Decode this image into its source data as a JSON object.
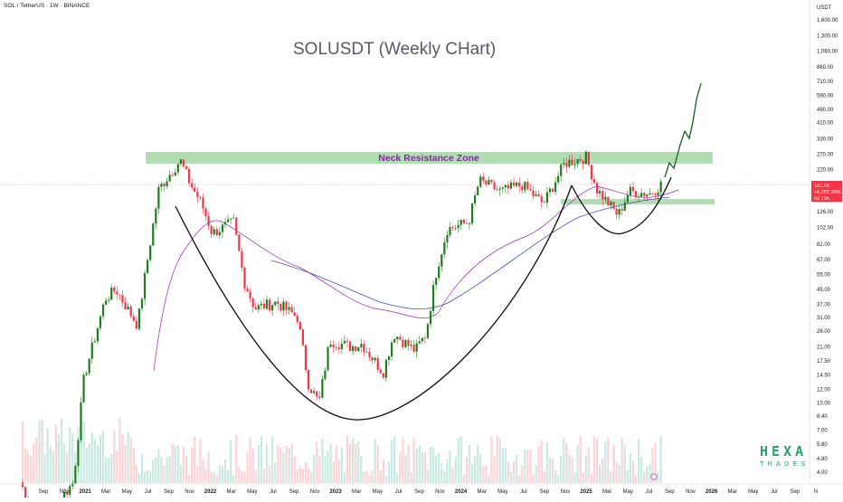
{
  "header": {
    "symbol_line": "SOL / TetherUS · 1W · BINANCE"
  },
  "title": "SOLUSDT (Weekly CHart)",
  "zone_label": "Neck Resistance Zone",
  "axis": {
    "currency": "USDT",
    "y_ticks": [
      "4.00",
      "4.80",
      "5.80",
      "7.00",
      "8.40",
      "10.00",
      "12.00",
      "14.50",
      "17.50",
      "21.00",
      "26.00",
      "31.00",
      "37.00",
      "45.00",
      "55.00",
      "67.00",
      "82.00",
      "102.00",
      "126.00",
      "160.00",
      "220.00",
      "270.00",
      "330.00",
      "410.00",
      "490.00",
      "590.00",
      "710.00",
      "860.00",
      "1,060.00",
      "1,300.00",
      "1,600.00"
    ],
    "x_ticks": [
      {
        "label": "Sep",
        "year": false
      },
      {
        "label": "Nov",
        "year": false
      },
      {
        "label": "2021",
        "year": true
      },
      {
        "label": "Mar",
        "year": false
      },
      {
        "label": "May",
        "year": false
      },
      {
        "label": "Jul",
        "year": false
      },
      {
        "label": "Sep",
        "year": false
      },
      {
        "label": "Nov",
        "year": false
      },
      {
        "label": "2022",
        "year": true
      },
      {
        "label": "Mar",
        "year": false
      },
      {
        "label": "May",
        "year": false
      },
      {
        "label": "Jul",
        "year": false
      },
      {
        "label": "Sep",
        "year": false
      },
      {
        "label": "Nov",
        "year": false
      },
      {
        "label": "2023",
        "year": true
      },
      {
        "label": "Mar",
        "year": false
      },
      {
        "label": "May",
        "year": false
      },
      {
        "label": "Jul",
        "year": false
      },
      {
        "label": "Sep",
        "year": false
      },
      {
        "label": "Nov",
        "year": false
      },
      {
        "label": "2024",
        "year": true
      },
      {
        "label": "Mar",
        "year": false
      },
      {
        "label": "May",
        "year": false
      },
      {
        "label": "Jul",
        "year": false
      },
      {
        "label": "Sep",
        "year": false
      },
      {
        "label": "Nov",
        "year": false
      },
      {
        "label": "2025",
        "year": true
      },
      {
        "label": "Mar",
        "year": false
      },
      {
        "label": "May",
        "year": false
      },
      {
        "label": "Jul",
        "year": false
      },
      {
        "label": "Sep",
        "year": false
      },
      {
        "label": "Nov",
        "year": false
      },
      {
        "label": "2026",
        "year": true
      },
      {
        "label": "Mar",
        "year": false
      },
      {
        "label": "May",
        "year": false
      },
      {
        "label": "Jul",
        "year": false
      },
      {
        "label": "Sep",
        "year": false
      },
      {
        "label": "N",
        "year": false
      }
    ]
  },
  "price_tag": {
    "price": "181.04",
    "change": "+6,282.28%",
    "countdown": "6d 16h"
  },
  "logo": {
    "top": "HEXA",
    "bottom": "TRADES"
  },
  "colors": {
    "up": "#089981",
    "down": "#f23645",
    "up_solid": "#1e7d1e",
    "zone": "#a5d6a7",
    "zone_label": "#8e24aa",
    "ma_slow": "#3f51b5",
    "ma_fast": "#9c27b0",
    "projection": "#1b5e20",
    "pattern": "#0a0a0a",
    "price_line": "#f23645",
    "logo": "#26a26a"
  },
  "chart_data": {
    "type": "candlestick",
    "title": "SOLUSDT (Weekly CHart)",
    "scale": "log",
    "ylim": [
      4.0,
      1600.0
    ],
    "xlim": [
      "2020-08",
      "2026-10"
    ],
    "grid": false,
    "close_price_series": [
      {
        "date": "2020-08",
        "close": 3.5
      },
      {
        "date": "2020-10",
        "close": 2.0
      },
      {
        "date": "2021-01",
        "close": 3.5
      },
      {
        "date": "2021-02",
        "close": 14.0
      },
      {
        "date": "2021-04",
        "close": 40.0
      },
      {
        "date": "2021-05",
        "close": 45.0
      },
      {
        "date": "2021-07",
        "close": 28.0
      },
      {
        "date": "2021-08",
        "close": 70.0
      },
      {
        "date": "2021-09",
        "close": 170.0
      },
      {
        "date": "2021-11",
        "close": 250.0
      },
      {
        "date": "2021-12",
        "close": 180.0
      },
      {
        "date": "2022-01",
        "close": 140.0
      },
      {
        "date": "2022-02",
        "close": 95.0
      },
      {
        "date": "2022-04",
        "close": 110.0
      },
      {
        "date": "2022-05",
        "close": 50.0
      },
      {
        "date": "2022-06",
        "close": 35.0
      },
      {
        "date": "2022-08",
        "close": 38.0
      },
      {
        "date": "2022-10",
        "close": 31.0
      },
      {
        "date": "2022-11",
        "close": 13.0
      },
      {
        "date": "2022-12",
        "close": 10.0
      },
      {
        "date": "2023-01",
        "close": 23.0
      },
      {
        "date": "2023-03",
        "close": 21.0
      },
      {
        "date": "2023-04",
        "close": 22.0
      },
      {
        "date": "2023-06",
        "close": 15.0
      },
      {
        "date": "2023-07",
        "close": 25.0
      },
      {
        "date": "2023-09",
        "close": 20.0
      },
      {
        "date": "2023-10",
        "close": 25.0
      },
      {
        "date": "2023-11",
        "close": 58.0
      },
      {
        "date": "2023-12",
        "close": 100.0
      },
      {
        "date": "2024-02",
        "close": 110.0
      },
      {
        "date": "2024-03",
        "close": 190.0
      },
      {
        "date": "2024-05",
        "close": 165.0
      },
      {
        "date": "2024-07",
        "close": 180.0
      },
      {
        "date": "2024-09",
        "close": 140.0
      },
      {
        "date": "2024-11",
        "close": 240.0
      },
      {
        "date": "2025-01",
        "close": 260.0
      },
      {
        "date": "2025-02",
        "close": 170.0
      },
      {
        "date": "2025-04",
        "close": 120.0
      },
      {
        "date": "2025-05",
        "close": 165.0
      },
      {
        "date": "2025-07",
        "close": 160.0
      },
      {
        "date": "2025-08",
        "close": 181.0
      }
    ],
    "annotations": [
      {
        "type": "resistance_zone",
        "label": "Neck Resistance Zone",
        "range": [
          240,
          290
        ]
      },
      {
        "type": "support_band",
        "range": [
          140,
          150
        ]
      },
      {
        "type": "cup_curve",
        "from": "2021-09",
        "to": "2025-01",
        "low": 8.0
      },
      {
        "type": "handle_curve",
        "from": "2025-01",
        "to": "2025-08",
        "low": 95.0
      },
      {
        "type": "projection",
        "from": "2025-08",
        "to": "2026-01",
        "target": 710.0
      }
    ]
  }
}
